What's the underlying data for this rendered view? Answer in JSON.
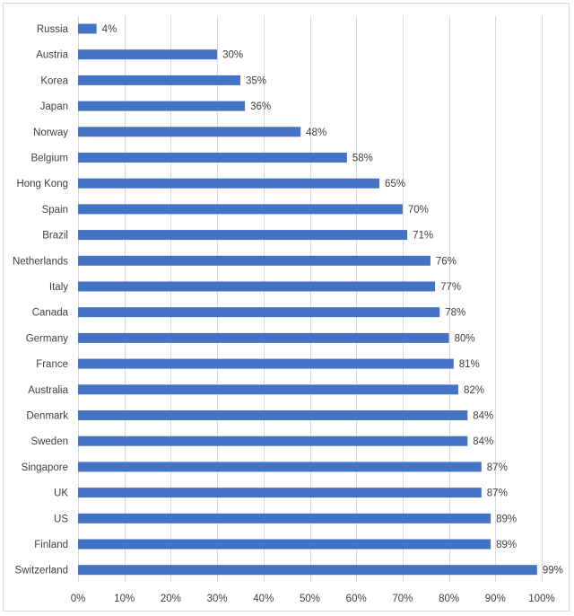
{
  "chart_data": {
    "type": "bar",
    "orientation": "horizontal",
    "title": "",
    "xlabel": "",
    "ylabel": "",
    "xlim": [
      0,
      100
    ],
    "grid": true,
    "legend": "none",
    "bar_color": "#4472c4",
    "categories": [
      "Russia",
      "Austria",
      "Korea",
      "Japan",
      "Norway",
      "Belgium",
      "Hong Kong",
      "Spain",
      "Brazil",
      "Netherlands",
      "Italy",
      "Canada",
      "Germany",
      "France",
      "Australia",
      "Denmark",
      "Sweden",
      "Singapore",
      "UK",
      "US",
      "Finland",
      "Switzerland"
    ],
    "values": [
      4,
      30,
      35,
      36,
      48,
      58,
      65,
      70,
      71,
      76,
      77,
      78,
      80,
      81,
      82,
      84,
      84,
      87,
      87,
      89,
      89,
      99
    ],
    "value_labels": [
      "4%",
      "30%",
      "35%",
      "36%",
      "48%",
      "58%",
      "65%",
      "70%",
      "71%",
      "76%",
      "77%",
      "78%",
      "80%",
      "81%",
      "82%",
      "84%",
      "84%",
      "87%",
      "87%",
      "89%",
      "89%",
      "99%"
    ],
    "ticks": [
      0,
      10,
      20,
      30,
      40,
      50,
      60,
      70,
      80,
      90,
      100
    ],
    "tick_labels": [
      "0%",
      "10%",
      "20%",
      "30%",
      "40%",
      "50%",
      "60%",
      "70%",
      "80%",
      "90%",
      "100%"
    ]
  }
}
